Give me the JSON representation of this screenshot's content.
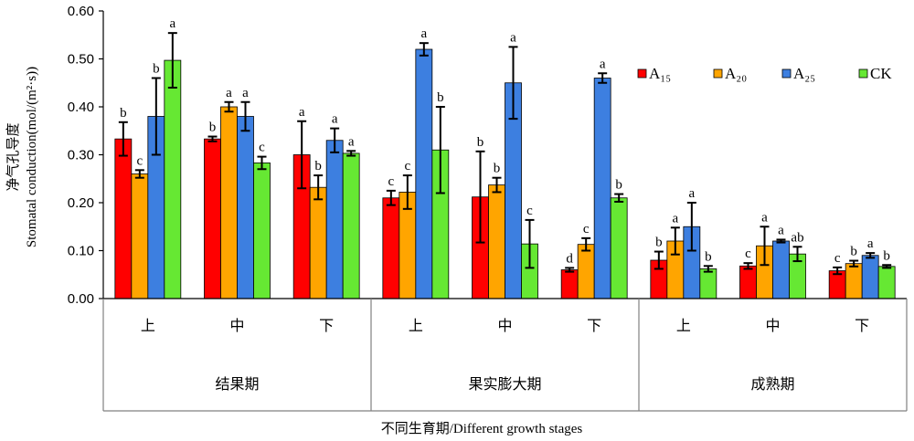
{
  "chart_data": {
    "type": "bar",
    "ylabel_cn": "净气孔导度",
    "ylabel_en": "Stomatal conduction(mol/(m²·s))",
    "xlabel": "不同生育期/Different growth stages",
    "ylim": [
      0,
      0.6
    ],
    "yticks": [
      "0.00",
      "0.10",
      "0.20",
      "0.30",
      "0.40",
      "0.50",
      "0.60"
    ],
    "stages": [
      "结果期",
      "果实膨大期",
      "成熟期"
    ],
    "positions": [
      "上",
      "中",
      "下"
    ],
    "categories": [
      "结果期-上",
      "结果期-中",
      "结果期-下",
      "果实膨大期-上",
      "果实膨大期-中",
      "果实膨大期-下",
      "成熟期-上",
      "成熟期-中",
      "成熟期-下"
    ],
    "legend_position": "right",
    "series": [
      {
        "name": "A₁₅",
        "color": "#ff0000",
        "values": [
          0.333,
          0.333,
          0.3,
          0.21,
          0.212,
          0.06,
          0.08,
          0.068,
          0.058
        ],
        "errors": [
          0.035,
          0.005,
          0.07,
          0.015,
          0.095,
          0.004,
          0.018,
          0.006,
          0.007
        ],
        "sig": [
          "b",
          "b",
          "a",
          "c",
          "b",
          "d",
          "b",
          "c",
          "c"
        ]
      },
      {
        "name": "A₂₀",
        "color": "#ffa500",
        "values": [
          0.26,
          0.4,
          0.232,
          0.222,
          0.237,
          0.113,
          0.12,
          0.11,
          0.073
        ],
        "errors": [
          0.008,
          0.01,
          0.025,
          0.035,
          0.015,
          0.013,
          0.028,
          0.04,
          0.006
        ],
        "sig": [
          "c",
          "a",
          "b",
          "c",
          "b",
          "c",
          "a",
          "a",
          "b"
        ]
      },
      {
        "name": "A₂₅",
        "color": "#3d7fe0",
        "values": [
          0.38,
          0.38,
          0.33,
          0.52,
          0.45,
          0.46,
          0.15,
          0.12,
          0.09
        ],
        "errors": [
          0.08,
          0.03,
          0.025,
          0.013,
          0.075,
          0.01,
          0.05,
          0.003,
          0.005
        ],
        "sig": [
          "b",
          "a",
          "a",
          "a",
          "a",
          "a",
          "a",
          "a",
          "a"
        ]
      },
      {
        "name": "CK",
        "color": "#66e833",
        "values": [
          0.497,
          0.283,
          0.303,
          0.31,
          0.114,
          0.21,
          0.062,
          0.093,
          0.067
        ],
        "errors": [
          0.057,
          0.013,
          0.005,
          0.09,
          0.05,
          0.008,
          0.006,
          0.015,
          0.003
        ],
        "sig": [
          "a",
          "c",
          "a",
          "b",
          "c",
          "b",
          "b",
          "ab",
          "b"
        ]
      }
    ]
  }
}
